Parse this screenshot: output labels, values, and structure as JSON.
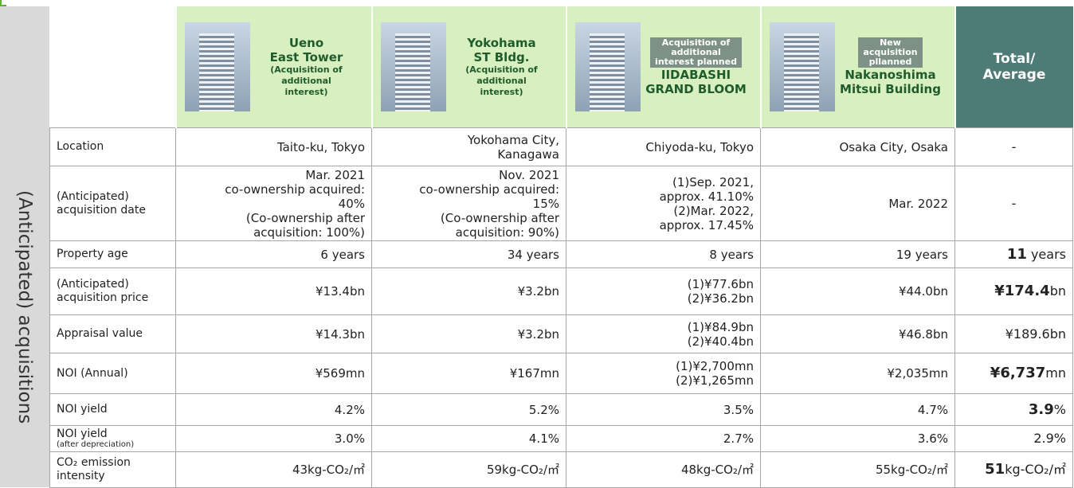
{
  "side_label": "(Anticipated) acquisitions",
  "header": {
    "properties": [
      {
        "badge": null,
        "name": "Ueno\nEast Tower",
        "note": "(Acquisition of\nadditional\ninterest)"
      },
      {
        "badge": null,
        "name": "Yokohama\nST Bldg.",
        "note": "(Acquisition of\nadditional\ninterest)"
      },
      {
        "badge": "Acquisition of\nadditional\ninterest planned",
        "name": "IIDABASHI\nGRAND BLOOM",
        "note": null
      },
      {
        "badge": "New\nacquisition\npllanned",
        "name": "Nakanoshima\nMitsui Building",
        "note": null
      }
    ],
    "total": "Total/\nAverage"
  },
  "rows": [
    {
      "label": "Location",
      "label_note": null,
      "cells": [
        "Taito-ku, Tokyo",
        "Yokohama City,\nKanagawa",
        "Chiyoda-ku, Tokyo",
        "Osaka City, Osaka"
      ],
      "total": {
        "text": "-"
      }
    },
    {
      "label": "(Anticipated)\nacquisition date",
      "label_note": null,
      "cells": [
        "Mar. 2021\nco-ownership acquired:\n40%\n(Co-ownership after\nacquisition: 100%)",
        "Nov. 2021\nco-ownership acquired:\n15%\n(Co-ownership after\nacquisition: 90%)",
        "(1)Sep. 2021,\napprox. 41.10%\n(2)Mar. 2022,\napprox. 17.45%",
        "Mar. 2022"
      ],
      "total": {
        "text": "-"
      }
    },
    {
      "label": "Property age",
      "label_note": null,
      "cells": [
        "6 years",
        "34 years",
        "8 years",
        "19 years"
      ],
      "total": {
        "bold": "11",
        "rest": " years"
      }
    },
    {
      "label": "(Anticipated)\nacquisition price",
      "label_note": null,
      "cells": [
        "¥13.4bn",
        "¥3.2bn",
        "(1)¥77.6bn\n(2)¥36.2bn",
        "¥44.0bn"
      ],
      "total": {
        "bold": "¥174.4",
        "rest": "bn"
      }
    },
    {
      "label": "Appraisal value",
      "label_note": null,
      "cells": [
        "¥14.3bn",
        "¥3.2bn",
        "(1)¥84.9bn\n(2)¥40.4bn",
        "¥46.8bn"
      ],
      "total": {
        "text": "¥189.6bn"
      }
    },
    {
      "label": "NOI (Annual)",
      "label_note": null,
      "cells": [
        "¥569mn",
        "¥167mn",
        "(1)¥2,700mn\n(2)¥1,265mn",
        "¥2,035mn"
      ],
      "total": {
        "bold": "¥6,737",
        "rest": "mn"
      }
    },
    {
      "label": "NOI yield",
      "label_note": null,
      "cells": [
        "4.2%",
        "5.2%",
        "3.5%",
        "4.7%"
      ],
      "total": {
        "bold": "3.9",
        "rest": "%"
      }
    },
    {
      "label": "NOI yield",
      "label_note": "(after depreciation)",
      "cells": [
        "3.0%",
        "4.1%",
        "2.7%",
        "3.6%"
      ],
      "total": {
        "text": "2.9%"
      }
    },
    {
      "label": "CO₂ emission\nintensity",
      "label_note": null,
      "cells": [
        "43kg-CO₂/㎡",
        "59kg-CO₂/㎡",
        "48kg-CO₂/㎡",
        "55kg-CO₂/㎡"
      ],
      "total": {
        "bold": "51",
        "rest": "kg-CO₂/㎡"
      }
    }
  ]
}
